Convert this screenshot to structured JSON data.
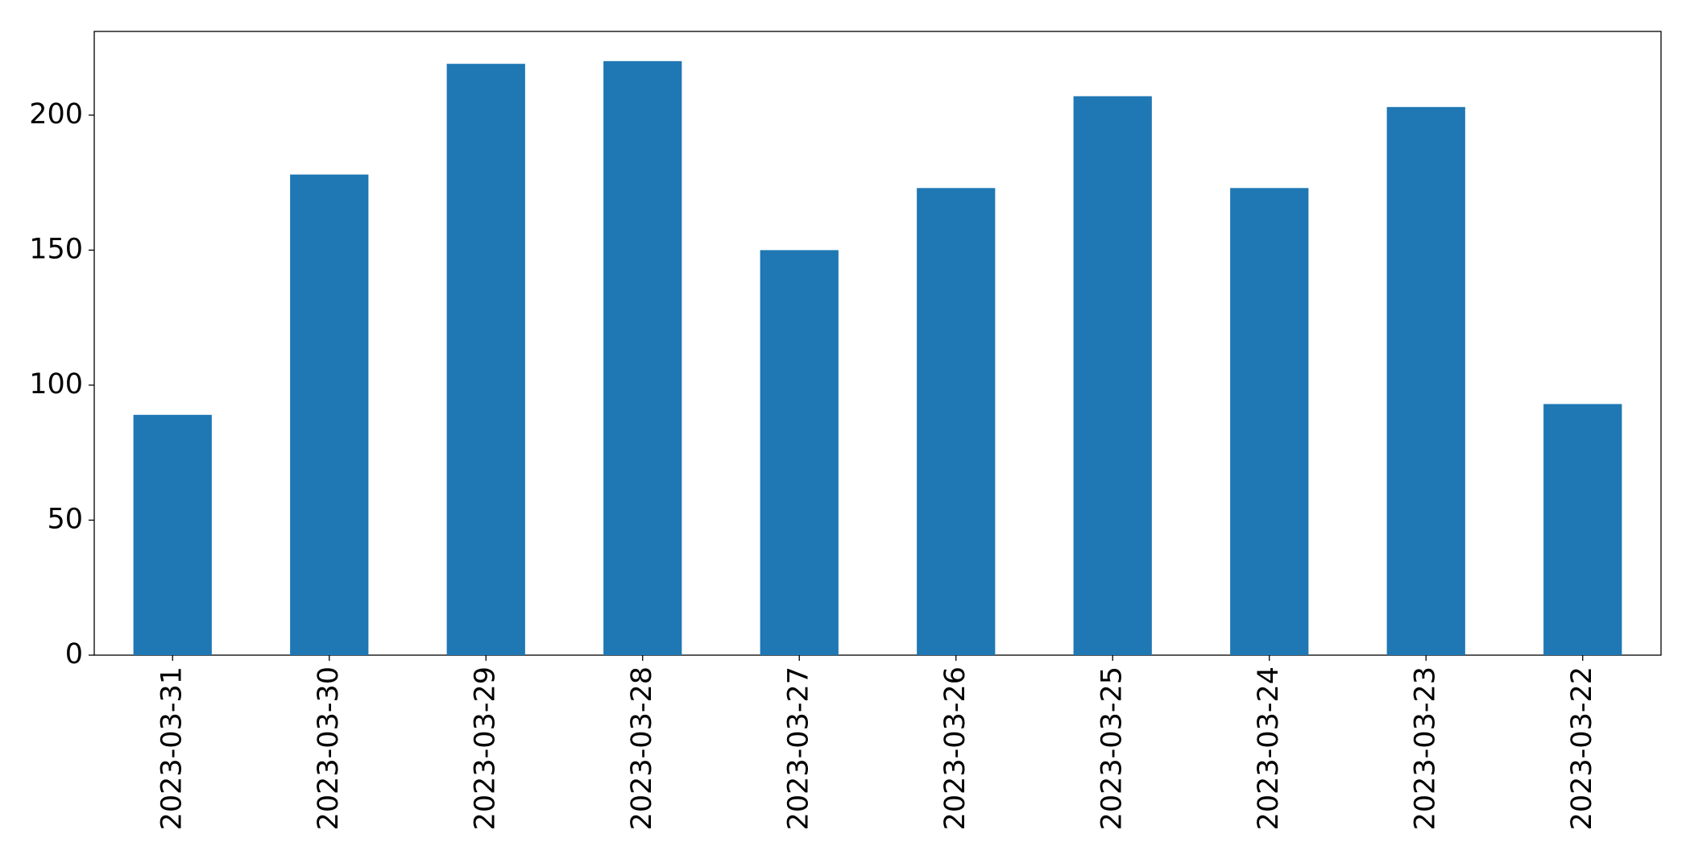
{
  "chart_data": {
    "type": "bar",
    "categories": [
      "2023-03-31",
      "2023-03-30",
      "2023-03-29",
      "2023-03-28",
      "2023-03-27",
      "2023-03-26",
      "2023-03-25",
      "2023-03-24",
      "2023-03-23",
      "2023-03-22"
    ],
    "values": [
      89,
      178,
      219,
      220,
      150,
      173,
      207,
      173,
      203,
      93
    ],
    "color": "#1f77b4",
    "ylim": [
      0,
      231
    ],
    "yticks": [
      0,
      50,
      100,
      150,
      200
    ],
    "grid": false
  }
}
